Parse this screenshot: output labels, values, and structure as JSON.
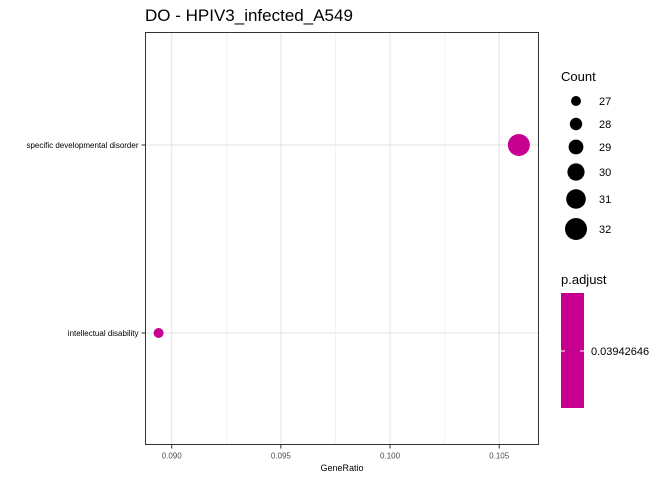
{
  "chart_data": {
    "type": "scatter",
    "title": "DO - HPIV3_infected_A549",
    "xlabel": "GeneRatio",
    "ylabel": "",
    "xlim": [
      0.0888,
      0.1068
    ],
    "x_ticks": [
      {
        "value": 0.09,
        "label": "0.090"
      },
      {
        "value": 0.095,
        "label": "0.095"
      },
      {
        "value": 0.1,
        "label": "0.100"
      },
      {
        "value": 0.105,
        "label": "0.105"
      }
    ],
    "categories": [
      "specific developmental disorder",
      "intellectual disability"
    ],
    "points": [
      {
        "category": "specific developmental disorder",
        "x": 0.1059,
        "count": 32,
        "p_adjust": 0.03942646
      },
      {
        "category": "intellectual disability",
        "x": 0.0894,
        "count": 27,
        "p_adjust": 0.03942646
      }
    ],
    "grid": true,
    "point_color": "#C7008F",
    "size_legend": {
      "title": "Count",
      "entries": [
        {
          "label": "27",
          "value": 27
        },
        {
          "label": "28",
          "value": 28
        },
        {
          "label": "29",
          "value": 29
        },
        {
          "label": "30",
          "value": 30
        },
        {
          "label": "31",
          "value": 31
        },
        {
          "label": "32",
          "value": 32
        }
      ]
    },
    "color_legend": {
      "title": "p.adjust",
      "label": "0.03942646",
      "color": "#C7008F"
    },
    "legend_placement": "right"
  }
}
